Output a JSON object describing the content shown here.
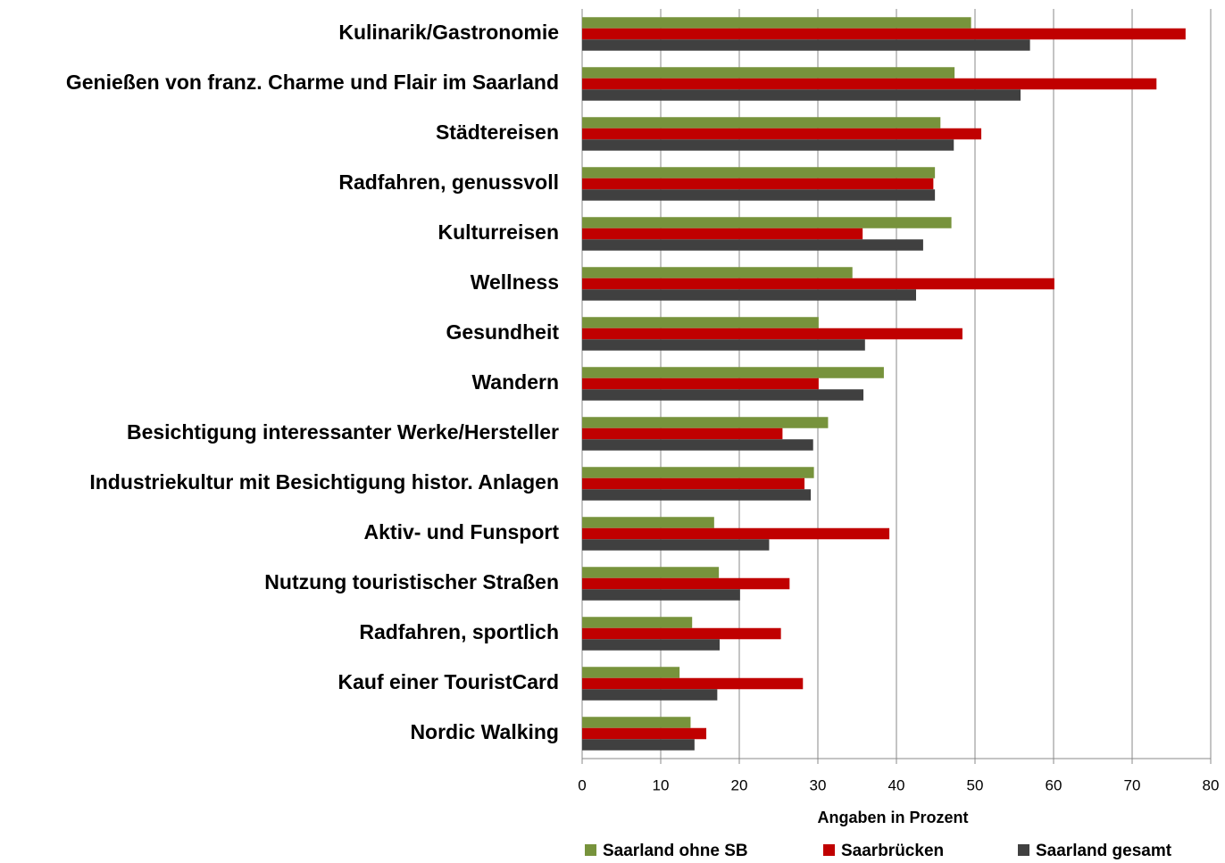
{
  "chart_data": {
    "type": "hbar",
    "x_label": "Angaben in Prozent",
    "categories": [
      "Kulinarik/Gastronomie",
      "Genießen von franz. Charme und Flair im Saarland",
      "Städtereisen",
      "Radfahren, genussvoll",
      "Kulturreisen",
      "Wellness",
      "Gesundheit",
      "Wandern",
      "Besichtigung interessanter Werke/Hersteller",
      "Industriekultur mit Besichtigung histor. Anlagen",
      "Aktiv- und Funsport",
      "Nutzung touristischer Straßen",
      "Radfahren, sportlich",
      "Kauf einer TouristCard",
      "Nordic Walking"
    ],
    "series": [
      {
        "name": "Saarland ohne SB",
        "color": "#77933c",
        "values": [
          49.5,
          47.4,
          45.6,
          44.9,
          47.0,
          34.4,
          30.1,
          38.4,
          31.3,
          29.5,
          16.8,
          17.4,
          14.0,
          12.4,
          13.8
        ]
      },
      {
        "name": "Saarbrücken",
        "color": "#c00000",
        "values": [
          76.8,
          73.1,
          50.8,
          44.7,
          35.7,
          60.1,
          48.4,
          30.1,
          25.5,
          28.3,
          39.1,
          26.4,
          25.3,
          28.1,
          15.8
        ]
      },
      {
        "name": "Saarland gesamt",
        "color": "#404040",
        "values": [
          57.0,
          55.8,
          47.3,
          44.9,
          43.4,
          42.5,
          36.0,
          35.8,
          29.4,
          29.1,
          23.8,
          20.1,
          17.5,
          17.2,
          14.3
        ]
      }
    ],
    "xlim": [
      0,
      80
    ],
    "xticks": [
      0,
      10,
      20,
      30,
      40,
      50,
      60,
      70,
      80
    ],
    "grid": true,
    "legend": "bottom"
  }
}
